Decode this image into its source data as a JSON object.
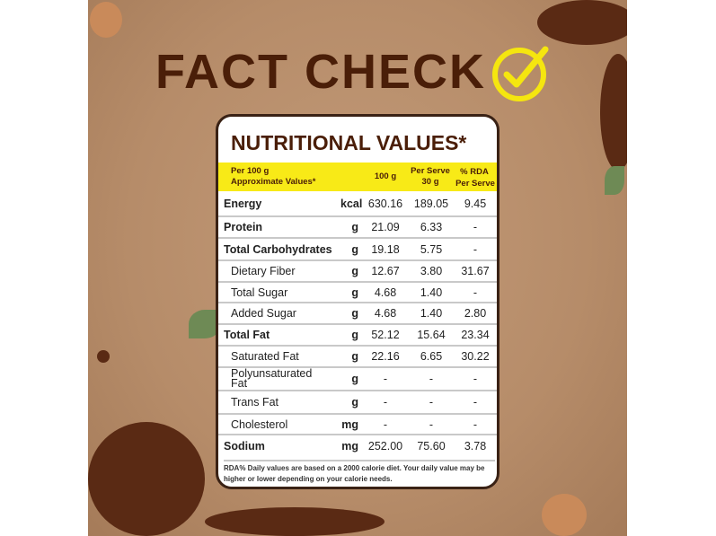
{
  "headline": "FACT CHECK",
  "badge_icon": "check-circle-icon",
  "colors": {
    "background": "#b68c69",
    "title": "#4a1e08",
    "highlight": "#f8ea17"
  },
  "card": {
    "title": "NUTRITIONAL VALUES*",
    "header": {
      "col0_line1": "Per 100 g",
      "col0_line2": "Approximate Values*",
      "col1": "100 g",
      "col2_line1": "Per Serve",
      "col2_line2": "30 g",
      "col3_line1": "% RDA",
      "col3_line2": "Per Serve"
    },
    "rows": [
      {
        "name": "Energy",
        "unit": "kcal",
        "per100": "630.16",
        "serve": "189.05",
        "rda": "9.45",
        "bold": true
      },
      {
        "name": "Protein",
        "unit": "g",
        "per100": "21.09",
        "serve": "6.33",
        "rda": "-",
        "bold": true
      },
      {
        "name": "Total Carbohydrates",
        "unit": "g",
        "per100": "19.18",
        "serve": "5.75",
        "rda": "-",
        "bold": true
      },
      {
        "name": "Dietary Fiber",
        "unit": "g",
        "per100": "12.67",
        "serve": "3.80",
        "rda": "31.67",
        "bold": false
      },
      {
        "name": "Total Sugar",
        "unit": "g",
        "per100": "4.68",
        "serve": "1.40",
        "rda": "-",
        "bold": false
      },
      {
        "name": "Added Sugar",
        "unit": "g",
        "per100": "4.68",
        "serve": "1.40",
        "rda": "2.80",
        "bold": false
      },
      {
        "name": "Total Fat",
        "unit": "g",
        "per100": "52.12",
        "serve": "15.64",
        "rda": "23.34",
        "bold": true
      },
      {
        "name": "Saturated Fat",
        "unit": "g",
        "per100": "22.16",
        "serve": "6.65",
        "rda": "30.22",
        "bold": false
      },
      {
        "name": "Polyunsaturated Fat",
        "unit": "g",
        "per100": "-",
        "serve": "-",
        "rda": "-",
        "bold": false
      },
      {
        "name": "Trans Fat",
        "unit": "g",
        "per100": "-",
        "serve": "-",
        "rda": "-",
        "bold": false
      },
      {
        "name": "Cholesterol",
        "unit": "mg",
        "per100": "-",
        "serve": "-",
        "rda": "-",
        "bold": false
      },
      {
        "name": "Sodium",
        "unit": "mg",
        "per100": "252.00",
        "serve": "75.60",
        "rda": "3.78",
        "bold": true
      }
    ],
    "footnote": "RDA% Daily values are based on a 2000 calorie diet. Your daily value may be higher or lower depending on your calorie needs."
  }
}
